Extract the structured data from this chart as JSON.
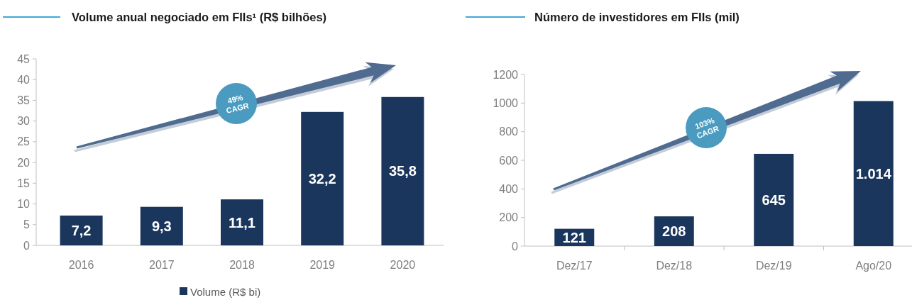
{
  "chart_data": [
    {
      "type": "bar",
      "title": "Volume anual negociado em FIIs¹ (R$ bilhões)",
      "categories": [
        "2016",
        "2017",
        "2018",
        "2019",
        "2020"
      ],
      "series": [
        {
          "name": "Volume (R$ bi)",
          "color": "#1b365d",
          "values": [
            7.2,
            9.3,
            11.1,
            32.2,
            35.8
          ],
          "value_labels": [
            "7,2",
            "9,3",
            "11,1",
            "32,2",
            "35,8"
          ]
        }
      ],
      "ylim": [
        0,
        45
      ],
      "yticks": [
        0,
        5,
        10,
        15,
        20,
        25,
        30,
        35,
        40,
        45
      ],
      "legend": "bottom",
      "annotations": [
        "49% CAGR"
      ]
    },
    {
      "type": "bar",
      "title": "Número de investidores em FIIs (mil)",
      "categories": [
        "Dez/17",
        "Dez/18",
        "Dez/19",
        "Ago/20"
      ],
      "series": [
        {
          "color": "#1b365d",
          "values": [
            121,
            208,
            645,
            1014
          ],
          "value_labels": [
            "121",
            "208",
            "645",
            "1.014"
          ]
        }
      ],
      "ylim": [
        0,
        1200
      ],
      "yticks": [
        0,
        200,
        400,
        600,
        800,
        1000,
        1200
      ],
      "annotations": [
        "103% CAGR"
      ]
    }
  ]
}
